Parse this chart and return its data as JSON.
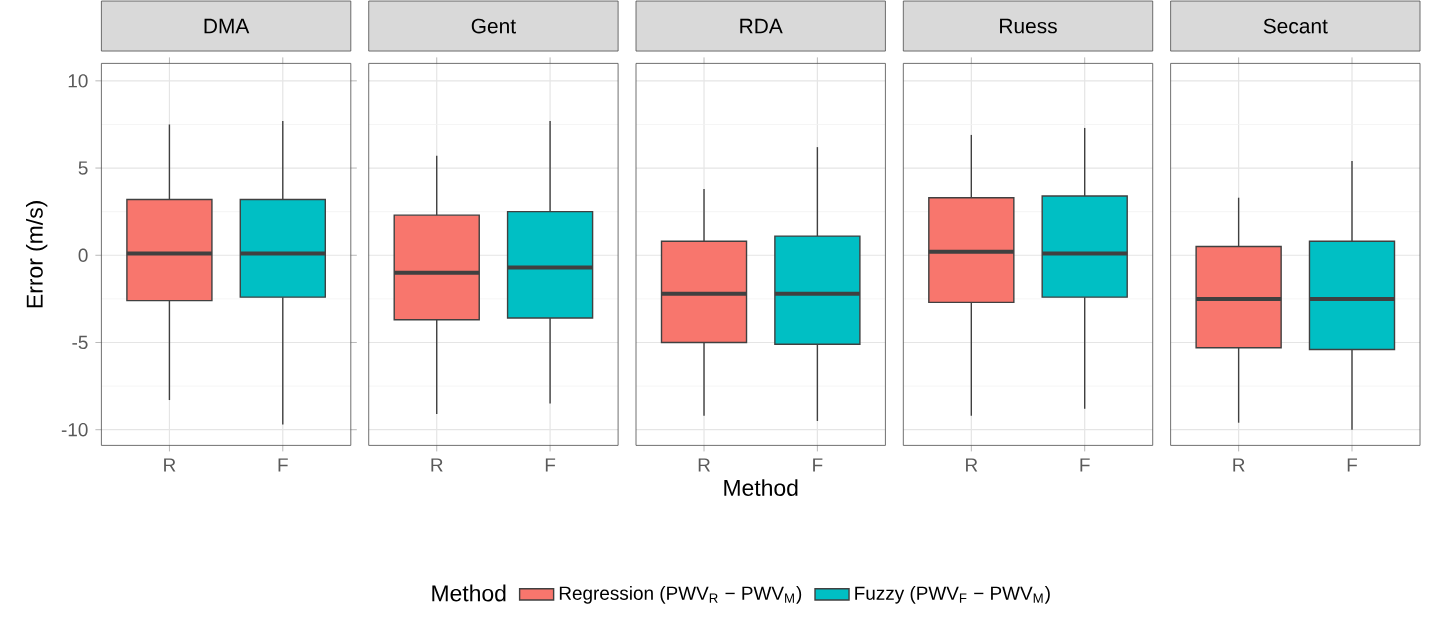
{
  "chart_data": [
    {
      "type": "box",
      "title": "DMA",
      "ylabel": "Error (m/s)",
      "categories": [
        "R",
        "F"
      ],
      "ylim": [
        -10.9,
        11
      ],
      "yticks": [
        -10,
        -5,
        0,
        5,
        10
      ],
      "grid": true,
      "series": [
        {
          "color": "#f8766d",
          "boxes": [
            {
              "low": -8.3,
              "q1": -2.6,
              "median": 0.1,
              "q3": 3.2,
              "high": 7.5
            },
            null
          ]
        },
        {
          "color": "#00bfc4",
          "boxes": [
            null,
            {
              "low": -9.7,
              "q1": -2.4,
              "median": 0.1,
              "q3": 3.2,
              "high": 7.7
            }
          ]
        }
      ]
    },
    {
      "type": "box",
      "title": "Gent",
      "categories": [
        "R",
        "F"
      ],
      "ylim": [
        -10.9,
        11
      ],
      "yticks": [
        -10,
        -5,
        0,
        5,
        10
      ],
      "grid": true,
      "tick_labels": "x",
      "series": [
        {
          "color": "#f8766d",
          "boxes": [
            {
              "low": -9.1,
              "q1": -3.7,
              "median": -1.0,
              "q3": 2.3,
              "high": 5.7
            },
            null
          ]
        },
        {
          "color": "#00bfc4",
          "boxes": [
            null,
            {
              "low": -8.5,
              "q1": -3.6,
              "median": -0.7,
              "q3": 2.5,
              "high": 7.7
            }
          ]
        }
      ]
    },
    {
      "type": "box",
      "title": "RDA",
      "xlabel": "Method",
      "legend_title": "Method",
      "legend": "bottom",
      "categories": [
        "R",
        "F"
      ],
      "ylim": [
        -10.9,
        11
      ],
      "yticks": [
        -10,
        -5,
        0,
        5,
        10
      ],
      "grid": true,
      "tick_labels": "x",
      "series": [
        {
          "name": "Regression (PWV$_{R}$ − PWV$_{M}$)",
          "color": "#f8766d",
          "boxes": [
            {
              "low": -9.2,
              "q1": -5.0,
              "median": -2.2,
              "q3": 0.8,
              "high": 3.8
            },
            null
          ]
        },
        {
          "name": "Fuzzy (PWV$_{F}$ − PWV$_{M}$)",
          "color": "#00bfc4",
          "boxes": [
            null,
            {
              "low": -9.5,
              "q1": -5.1,
              "median": -2.2,
              "q3": 1.1,
              "high": 6.2
            }
          ]
        }
      ]
    },
    {
      "type": "box",
      "title": "Ruess",
      "categories": [
        "R",
        "F"
      ],
      "ylim": [
        -10.9,
        11
      ],
      "yticks": [
        -10,
        -5,
        0,
        5,
        10
      ],
      "grid": true,
      "tick_labels": "x",
      "series": [
        {
          "color": "#f8766d",
          "boxes": [
            {
              "low": -9.2,
              "q1": -2.7,
              "median": 0.2,
              "q3": 3.3,
              "high": 6.9
            },
            null
          ]
        },
        {
          "color": "#00bfc4",
          "boxes": [
            null,
            {
              "low": -8.8,
              "q1": -2.4,
              "median": 0.1,
              "q3": 3.4,
              "high": 7.3
            }
          ]
        }
      ]
    },
    {
      "type": "box",
      "title": "Secant",
      "categories": [
        "R",
        "F"
      ],
      "ylim": [
        -10.9,
        11
      ],
      "yticks": [
        -10,
        -5,
        0,
        5,
        10
      ],
      "grid": true,
      "tick_labels": "x",
      "series": [
        {
          "color": "#f8766d",
          "boxes": [
            {
              "low": -9.6,
              "q1": -5.3,
              "median": -2.5,
              "q3": 0.5,
              "high": 3.3
            },
            null
          ]
        },
        {
          "color": "#00bfc4",
          "boxes": [
            null,
            {
              "low": -10.0,
              "q1": -5.4,
              "median": -2.5,
              "q3": 0.8,
              "high": 5.4
            }
          ]
        }
      ]
    }
  ]
}
